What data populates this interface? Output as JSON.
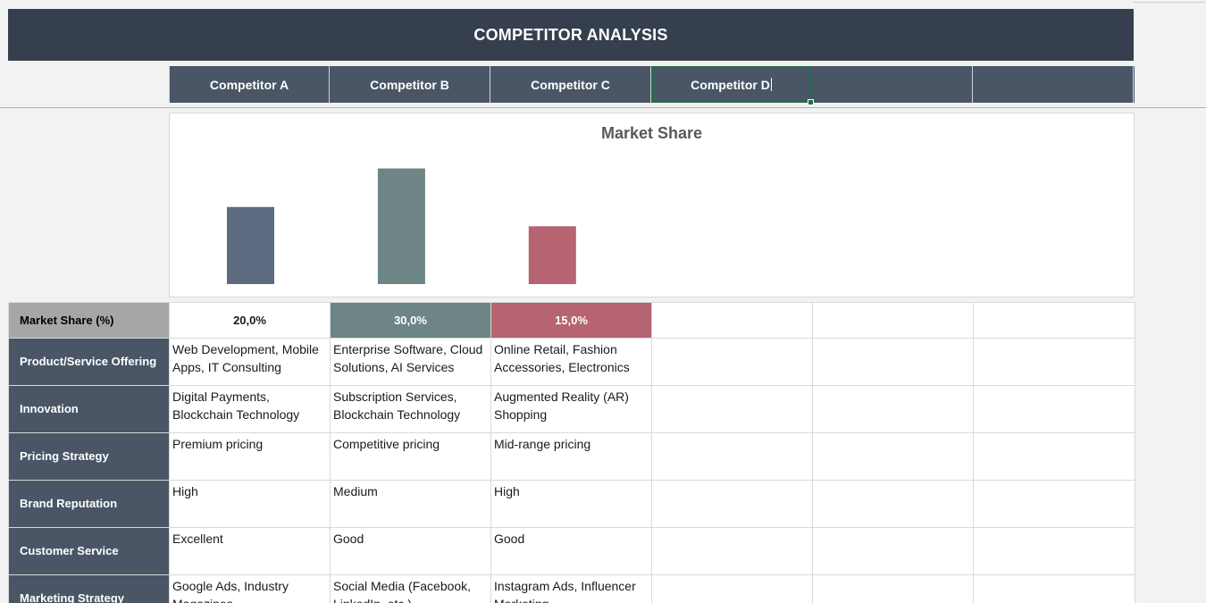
{
  "title": "COMPETITOR ANALYSIS",
  "competitors": [
    "Competitor A",
    "Competitor B",
    "Competitor C",
    "Competitor D",
    "",
    ""
  ],
  "chart_data": {
    "type": "bar",
    "title": "Market Share",
    "categories": [
      "Competitor A",
      "Competitor B",
      "Competitor C",
      "Competitor D",
      "",
      ""
    ],
    "values": [
      20,
      30,
      15,
      null,
      null,
      null
    ],
    "colors": [
      "#5c6b80",
      "#6e8585",
      "#b66372"
    ],
    "ylim": [
      0,
      35
    ],
    "grid": false,
    "legend": "none"
  },
  "rows": [
    {
      "label": "Market Share (%)",
      "cells": [
        "20,0%",
        "30,0%",
        "15,0%",
        "",
        "",
        ""
      ]
    },
    {
      "label": "Product/Service Offering",
      "cells": [
        "Web Development, Mobile Apps, IT Consulting",
        "Enterprise Software, Cloud Solutions, AI Services",
        "Online Retail, Fashion Accessories, Electronics",
        "",
        "",
        ""
      ]
    },
    {
      "label": "Innovation",
      "cells": [
        "Digital Payments, Blockchain Technology",
        "Subscription Services, Blockchain Technology",
        "Augmented Reality (AR) Shopping",
        "",
        "",
        ""
      ]
    },
    {
      "label": "Pricing Strategy",
      "cells": [
        "Premium pricing",
        "Competitive pricing",
        "Mid-range pricing",
        "",
        "",
        ""
      ]
    },
    {
      "label": "Brand Reputation",
      "cells": [
        "High",
        "Medium",
        "High",
        "",
        "",
        ""
      ]
    },
    {
      "label": "Customer Service",
      "cells": [
        "Excellent",
        "Good",
        "Good",
        "",
        "",
        ""
      ]
    },
    {
      "label": "Marketing Strategy",
      "cells": [
        "Google Ads, Industry Magazines",
        "Social Media (Facebook, LinkedIn, etc.)",
        "Instagram Ads, Influencer Marketing",
        "",
        "",
        ""
      ]
    }
  ]
}
